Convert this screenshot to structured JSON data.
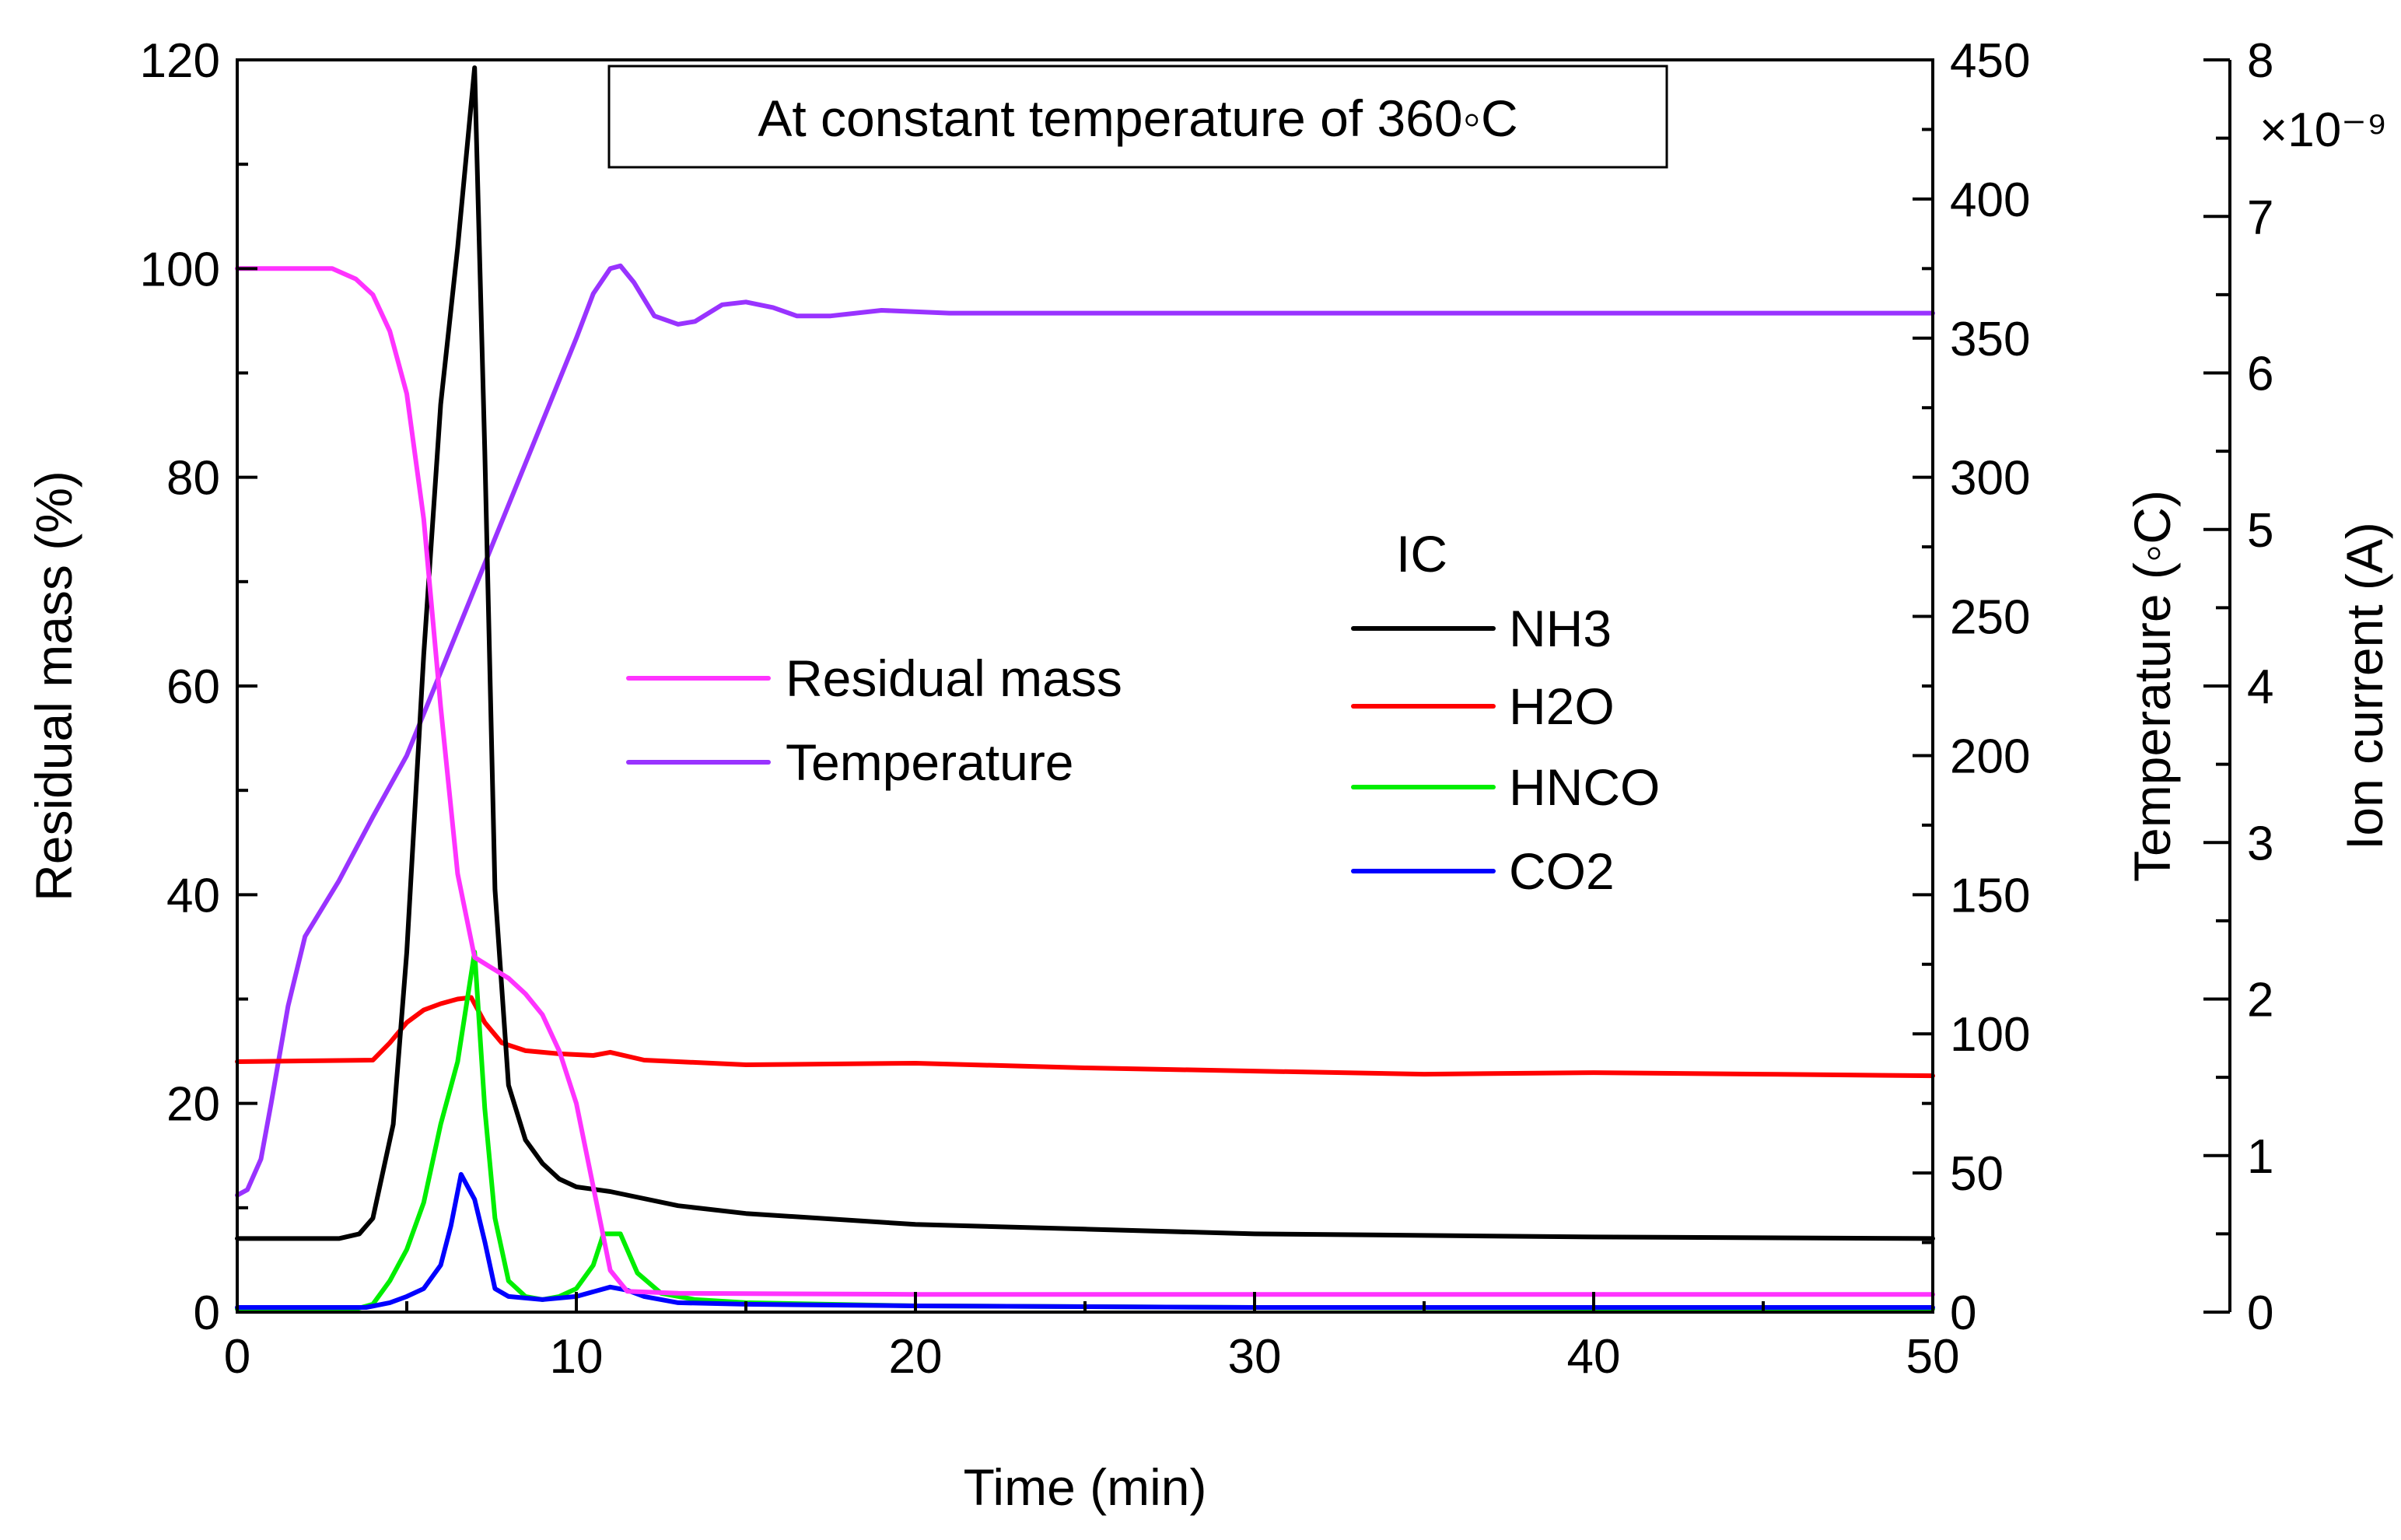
{
  "chart_data": {
    "type": "line",
    "annotation": "At constant temperature of 360◦C",
    "xlabel": "Time (min)",
    "xlim": [
      0,
      50
    ],
    "xticks": [
      "0",
      "10",
      "20",
      "30",
      "40",
      "50"
    ],
    "y_left": {
      "label": "Residual mass (%)",
      "lim": [
        0,
        120
      ],
      "ticks": [
        "0",
        "20",
        "40",
        "60",
        "80",
        "100",
        "120"
      ]
    },
    "y_temp": {
      "label": "Temperature (◦C)",
      "lim": [
        0,
        450
      ],
      "ticks": [
        "0",
        "50",
        "100",
        "150",
        "200",
        "250",
        "300",
        "350",
        "400",
        "450"
      ]
    },
    "y_ion": {
      "label": "Ion current (A)",
      "lim": [
        0,
        8
      ],
      "ticks": [
        "0",
        "1",
        "2",
        "3",
        "4",
        "5",
        "6",
        "7",
        "8"
      ],
      "multiplier": "×10⁻⁹"
    },
    "legend_main": [
      {
        "name": "Residual mass",
        "color": "#ff33ff"
      },
      {
        "name": "Temperature",
        "color": "#9933ff"
      }
    ],
    "legend_ic_title": "IC",
    "legend_ic": [
      {
        "name": "NH3",
        "color": "#000000"
      },
      {
        "name": "H2O",
        "color": "#ff0000"
      },
      {
        "name": "HNCO",
        "color": "#00ee00"
      },
      {
        "name": "CO2",
        "color": "#0000ff"
      }
    ],
    "series": [
      {
        "name": "Residual mass",
        "axis": "left",
        "color": "#ff33ff",
        "points": [
          [
            0,
            100
          ],
          [
            2.8,
            100
          ],
          [
            3.5,
            99
          ],
          [
            4,
            97.5
          ],
          [
            4.5,
            94
          ],
          [
            5,
            88
          ],
          [
            5.5,
            76
          ],
          [
            6,
            58
          ],
          [
            6.5,
            42
          ],
          [
            7,
            34
          ],
          [
            7.5,
            33
          ],
          [
            8,
            32
          ],
          [
            8.5,
            30.5
          ],
          [
            9,
            28.5
          ],
          [
            9.5,
            25
          ],
          [
            10,
            20
          ],
          [
            10.5,
            12
          ],
          [
            11,
            4
          ],
          [
            11.5,
            2
          ],
          [
            13,
            1.8
          ],
          [
            20,
            1.7
          ],
          [
            50,
            1.7
          ]
        ]
      },
      {
        "name": "Temperature",
        "axis": "temp",
        "color": "#9933ff",
        "points": [
          [
            0,
            42
          ],
          [
            0.3,
            44
          ],
          [
            0.7,
            55
          ],
          [
            1,
            75
          ],
          [
            1.5,
            110
          ],
          [
            2,
            135
          ],
          [
            3,
            155
          ],
          [
            4,
            178
          ],
          [
            5,
            200
          ],
          [
            6,
            230
          ],
          [
            7,
            260
          ],
          [
            8,
            290
          ],
          [
            9,
            320
          ],
          [
            10,
            350
          ],
          [
            10.5,
            366
          ],
          [
            11,
            375
          ],
          [
            11.3,
            376
          ],
          [
            11.7,
            370
          ],
          [
            12.3,
            358
          ],
          [
            13,
            355
          ],
          [
            13.5,
            356
          ],
          [
            14.3,
            362
          ],
          [
            15,
            363
          ],
          [
            15.8,
            361
          ],
          [
            16.5,
            358
          ],
          [
            17.5,
            358
          ],
          [
            19,
            360
          ],
          [
            21,
            359
          ],
          [
            50,
            359
          ]
        ]
      },
      {
        "name": "NH3",
        "axis": "ion",
        "color": "#000000",
        "points": [
          [
            0,
            0.47
          ],
          [
            3,
            0.47
          ],
          [
            3.6,
            0.5
          ],
          [
            4,
            0.6
          ],
          [
            4.6,
            1.2
          ],
          [
            5,
            2.3
          ],
          [
            5.5,
            4.2
          ],
          [
            6,
            5.8
          ],
          [
            6.5,
            6.8
          ],
          [
            7,
            7.95
          ],
          [
            7.3,
            5.5
          ],
          [
            7.6,
            2.7
          ],
          [
            8,
            1.45
          ],
          [
            8.5,
            1.1
          ],
          [
            9,
            0.95
          ],
          [
            9.5,
            0.85
          ],
          [
            10,
            0.8
          ],
          [
            11,
            0.77
          ],
          [
            13,
            0.68
          ],
          [
            15,
            0.63
          ],
          [
            20,
            0.56
          ],
          [
            25,
            0.53
          ],
          [
            30,
            0.5
          ],
          [
            40,
            0.48
          ],
          [
            50,
            0.47
          ]
        ]
      },
      {
        "name": "H2O",
        "axis": "ion",
        "color": "#ff0000",
        "points": [
          [
            0,
            1.6
          ],
          [
            4,
            1.61
          ],
          [
            4.5,
            1.72
          ],
          [
            5,
            1.85
          ],
          [
            5.5,
            1.93
          ],
          [
            6,
            1.97
          ],
          [
            6.5,
            2.0
          ],
          [
            6.9,
            2.01
          ],
          [
            7.3,
            1.85
          ],
          [
            7.8,
            1.72
          ],
          [
            8.5,
            1.67
          ],
          [
            9.5,
            1.65
          ],
          [
            10.5,
            1.64
          ],
          [
            11,
            1.66
          ],
          [
            12,
            1.61
          ],
          [
            15,
            1.58
          ],
          [
            20,
            1.59
          ],
          [
            25,
            1.56
          ],
          [
            30,
            1.54
          ],
          [
            35,
            1.52
          ],
          [
            40,
            1.53
          ],
          [
            45,
            1.52
          ],
          [
            50,
            1.51
          ]
        ]
      },
      {
        "name": "HNCO",
        "axis": "ion",
        "color": "#00ee00",
        "points": [
          [
            0,
            0.02
          ],
          [
            3.5,
            0.02
          ],
          [
            4,
            0.05
          ],
          [
            4.5,
            0.2
          ],
          [
            5,
            0.4
          ],
          [
            5.5,
            0.7
          ],
          [
            6,
            1.2
          ],
          [
            6.5,
            1.6
          ],
          [
            7,
            2.3
          ],
          [
            7.3,
            1.3
          ],
          [
            7.6,
            0.6
          ],
          [
            8,
            0.2
          ],
          [
            8.5,
            0.1
          ],
          [
            9,
            0.08
          ],
          [
            9.5,
            0.1
          ],
          [
            10,
            0.15
          ],
          [
            10.5,
            0.3
          ],
          [
            10.8,
            0.5
          ],
          [
            11.3,
            0.5
          ],
          [
            11.8,
            0.25
          ],
          [
            12.5,
            0.12
          ],
          [
            13.5,
            0.08
          ],
          [
            15,
            0.06
          ],
          [
            20,
            0.04
          ],
          [
            30,
            0.03
          ],
          [
            50,
            0.02
          ]
        ]
      },
      {
        "name": "CO2",
        "axis": "ion",
        "color": "#0000ff",
        "points": [
          [
            0,
            0.03
          ],
          [
            3.8,
            0.03
          ],
          [
            4.5,
            0.06
          ],
          [
            5,
            0.1
          ],
          [
            5.5,
            0.15
          ],
          [
            6,
            0.3
          ],
          [
            6.3,
            0.55
          ],
          [
            6.6,
            0.88
          ],
          [
            7,
            0.72
          ],
          [
            7.3,
            0.45
          ],
          [
            7.6,
            0.15
          ],
          [
            8,
            0.1
          ],
          [
            9,
            0.08
          ],
          [
            10,
            0.1
          ],
          [
            11,
            0.16
          ],
          [
            11.5,
            0.14
          ],
          [
            12,
            0.1
          ],
          [
            13,
            0.06
          ],
          [
            15,
            0.05
          ],
          [
            20,
            0.04
          ],
          [
            30,
            0.03
          ],
          [
            50,
            0.03
          ]
        ]
      }
    ]
  }
}
